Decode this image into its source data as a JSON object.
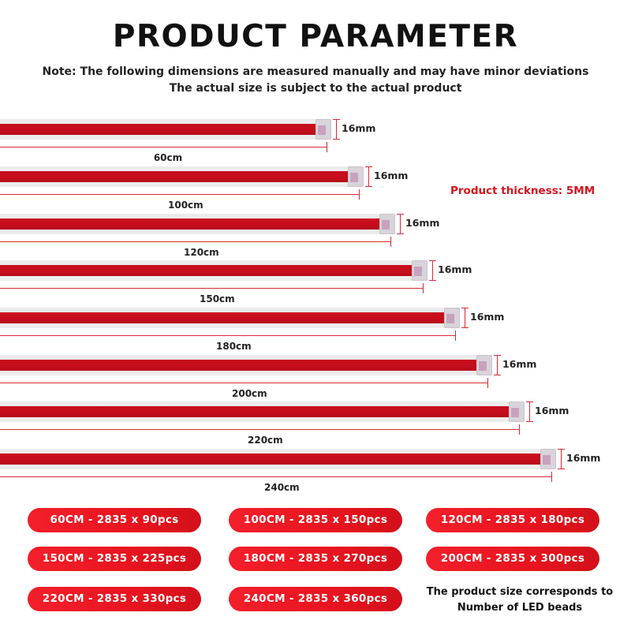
{
  "title": "PRODUCT PARAMETER",
  "note_line1": "Note: The following dimensions are measured manually and may have minor deviations",
  "note_line2": "The actual size is subject to the actual product",
  "thickness_label": "Product thickness: 5MM",
  "strips": [
    {
      "length_label": "60cm",
      "width_label": "16mm"
    },
    {
      "length_label": "100cm",
      "width_label": "16mm"
    },
    {
      "length_label": "120cm",
      "width_label": "16mm"
    },
    {
      "length_label": "150cm",
      "width_label": "16mm"
    },
    {
      "length_label": "180cm",
      "width_label": "16mm"
    },
    {
      "length_label": "200cm",
      "width_label": "16mm"
    },
    {
      "length_label": "220cm",
      "width_label": "16mm"
    },
    {
      "length_label": "240cm",
      "width_label": "16mm"
    }
  ],
  "specs": [
    "60CM - 2835 x 90pcs",
    "100CM - 2835 x 150pcs",
    "120CM - 2835 x 180pcs",
    "150CM - 2835 x 225pcs",
    "180CM - 2835 x 270pcs",
    "200CM - 2835 x 300pcs",
    "220CM - 2835 x 330pcs",
    "240CM - 2835 x 360pcs"
  ],
  "footnote_line1": "The product size corresponds to",
  "footnote_line2": "Number of LED beads",
  "colors": {
    "accent": "#d4141f",
    "strip": "#c80f1d",
    "pill": "#ee1a25"
  }
}
